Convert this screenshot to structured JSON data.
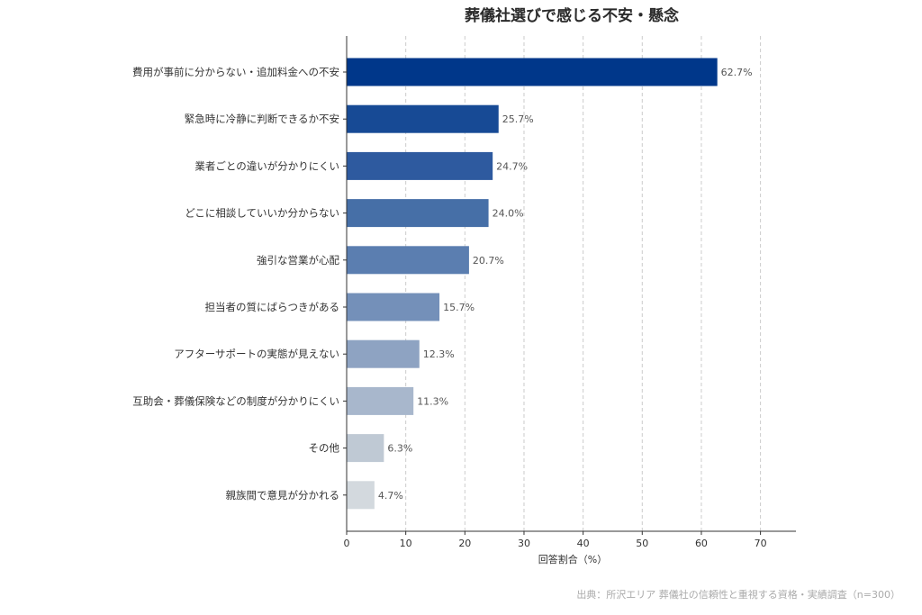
{
  "chart_data": {
    "type": "bar",
    "orientation": "horizontal",
    "title": "葬儀社選びで感じる不安・懸念",
    "categories": [
      "費用が事前に分からない・追加料金への不安",
      "緊急時に冷静に判断できるか不安",
      "業者ごとの違いが分かりにくい",
      "どこに相談していいか分からない",
      "強引な営業が心配",
      "担当者の質にばらつきがある",
      "アフターサポートの実態が見えない",
      "互助会・葬儀保険などの制度が分かりにくい",
      "その他",
      "親族間で意見が分かれる"
    ],
    "values": [
      62.7,
      25.7,
      24.7,
      24.0,
      20.7,
      15.7,
      12.3,
      11.3,
      6.3,
      4.7
    ],
    "value_labels": [
      "62.7%",
      "25.7%",
      "24.7%",
      "24.0%",
      "20.7%",
      "15.7%",
      "12.3%",
      "11.3%",
      "6.3%",
      "4.7%"
    ],
    "colors": [
      "#00378a",
      "#174a95",
      "#2e5a9f",
      "#466fa7",
      "#5b7eb0",
      "#7490b9",
      "#8ea3c2",
      "#a8b7cc",
      "#bfc9d4",
      "#d3d9de"
    ],
    "xlabel": "回答割合（%）",
    "ylabel": "",
    "xlim": [
      0,
      76
    ],
    "xticks": [
      0,
      10,
      20,
      30,
      40,
      50,
      60,
      70
    ],
    "grid": "vertical dashed",
    "legend": "none"
  },
  "source_note": "出典：所沢エリア 葬儀社の信頼性と重視する資格・実績調査（n=300）"
}
